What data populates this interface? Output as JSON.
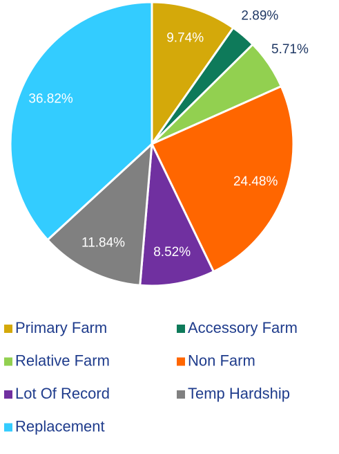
{
  "chart_data": {
    "type": "pie",
    "categories": [
      "Primary Farm",
      "Accessory Farm",
      "Relative Farm",
      "Non Farm",
      "Lot Of Record",
      "Temp Hardship",
      "Replacement"
    ],
    "values": [
      9.74,
      2.89,
      5.71,
      24.48,
      8.52,
      11.84,
      36.82
    ],
    "value_labels": [
      "9.74%",
      "2.89%",
      "5.71%",
      "24.48%",
      "8.52%",
      "11.84%",
      "36.82%"
    ],
    "colors": [
      "#d4a90a",
      "#0e7a5a",
      "#92d050",
      "#ff6600",
      "#7030a0",
      "#808080",
      "#33ccff"
    ]
  }
}
